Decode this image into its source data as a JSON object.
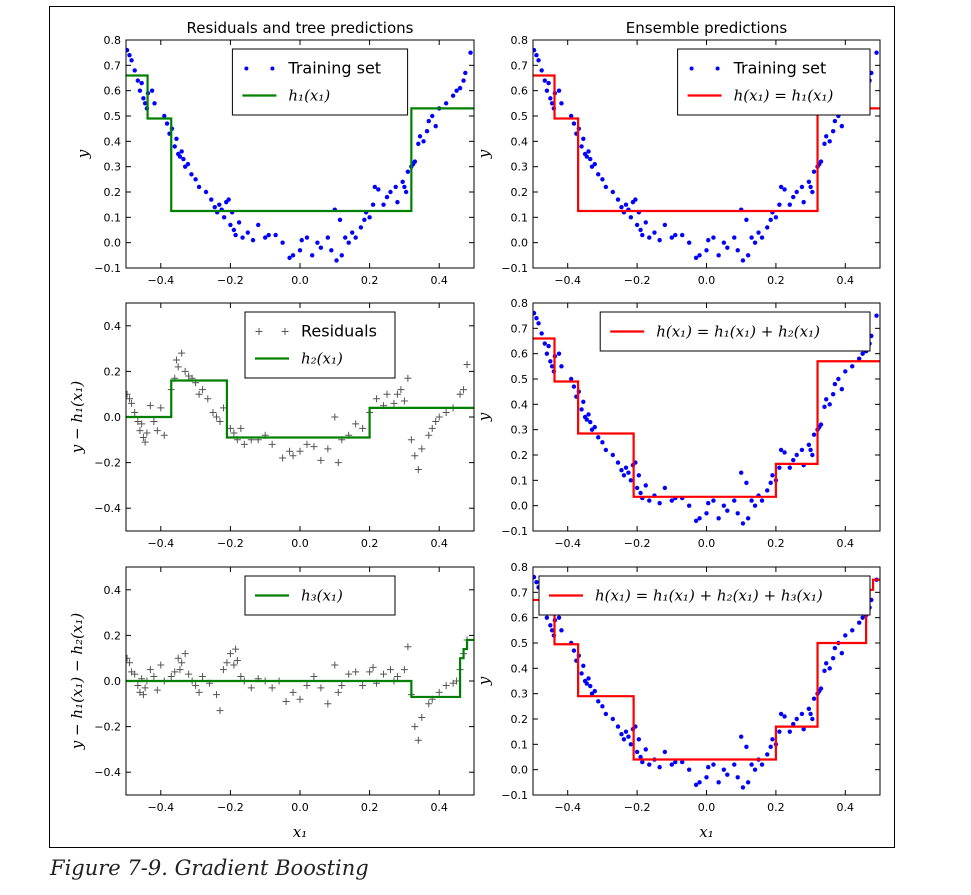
{
  "caption": "Figure 7-9. Gradient Boosting",
  "colors": {
    "points": "#0000ff",
    "residual_markers": "#555555",
    "tree_line": "#008000",
    "ensemble_line": "#ff0000"
  },
  "chart_data": [
    {
      "id": "p1",
      "type": "scatter",
      "title": "Residuals and tree predictions",
      "xlabel": "",
      "ylabel": "y",
      "xlim": [
        -0.5,
        0.5
      ],
      "ylim": [
        -0.1,
        0.8
      ],
      "xticks": [
        "−0.4",
        "−0.2",
        "0.0",
        "0.2",
        "0.4"
      ],
      "yticks": [
        "−0.1",
        "0.0",
        "0.1",
        "0.2",
        "0.3",
        "0.4",
        "0.5",
        "0.6",
        "0.7",
        "0.8"
      ],
      "legend": [
        "Training set",
        "h₁(x₁)"
      ],
      "legend_position": "top-center",
      "points": "training",
      "marker": "dot",
      "line": {
        "breaks": [
          -0.5,
          -0.438,
          -0.37,
          0.32,
          0.5
        ],
        "values": [
          0.66,
          0.49,
          0.125,
          0.53
        ],
        "color": "green"
      }
    },
    {
      "id": "p2",
      "type": "line",
      "title": "Ensemble predictions",
      "xlabel": "",
      "ylabel": "y",
      "xlim": [
        -0.5,
        0.5
      ],
      "ylim": [
        -0.1,
        0.8
      ],
      "xticks": [
        "−0.4",
        "−0.2",
        "0.0",
        "0.2",
        "0.4"
      ],
      "yticks": [
        "−0.1",
        "0.0",
        "0.1",
        "0.2",
        "0.3",
        "0.4",
        "0.5",
        "0.6",
        "0.7",
        "0.8"
      ],
      "legend": [
        "Training set",
        "h(x₁) = h₁(x₁)"
      ],
      "legend_position": "top-right",
      "points": "training",
      "marker": "dot",
      "line": {
        "breaks": [
          -0.5,
          -0.438,
          -0.37,
          0.32,
          0.5
        ],
        "values": [
          0.66,
          0.49,
          0.125,
          0.53
        ],
        "color": "red"
      }
    },
    {
      "id": "p3",
      "type": "scatter",
      "title": "",
      "xlabel": "",
      "ylabel": "y − h₁(x₁)",
      "xlim": [
        -0.5,
        0.5
      ],
      "ylim": [
        -0.5,
        0.5
      ],
      "xticks": [
        "−0.4",
        "−0.2",
        "0.0",
        "0.2",
        "0.4"
      ],
      "yticks": [
        "−0.4",
        "−0.2",
        "0.0",
        "0.2",
        "0.4"
      ],
      "legend": [
        "Residuals",
        "h₂(x₁)"
      ],
      "legend_position": "top-center",
      "points": "residual1",
      "marker": "plus",
      "line": {
        "breaks": [
          -0.5,
          -0.37,
          -0.21,
          0.2,
          0.5
        ],
        "values": [
          0.0,
          0.16,
          -0.09,
          0.04
        ],
        "color": "green"
      }
    },
    {
      "id": "p4",
      "type": "line",
      "title": "",
      "xlabel": "",
      "ylabel": "y",
      "xlim": [
        -0.5,
        0.5
      ],
      "ylim": [
        -0.1,
        0.8
      ],
      "xticks": [
        "−0.4",
        "−0.2",
        "0.0",
        "0.2",
        "0.4"
      ],
      "yticks": [
        "−0.1",
        "0.0",
        "0.1",
        "0.2",
        "0.3",
        "0.4",
        "0.5",
        "0.6",
        "0.7",
        "0.8"
      ],
      "legend": [
        "h(x₁) = h₁(x₁) + h₂(x₁)"
      ],
      "legend_position": "top-right",
      "points": "training",
      "marker": "dot",
      "line": {
        "breaks": [
          -0.5,
          -0.438,
          -0.37,
          -0.21,
          0.2,
          0.32,
          0.5
        ],
        "values": [
          0.66,
          0.49,
          0.285,
          0.035,
          0.165,
          0.57
        ],
        "color": "red"
      }
    },
    {
      "id": "p5",
      "type": "scatter",
      "title": "",
      "xlabel": "x₁",
      "ylabel": "y − h₁(x₁) − h₂(x₁)",
      "xlim": [
        -0.5,
        0.5
      ],
      "ylim": [
        -0.5,
        0.5
      ],
      "xticks": [
        "−0.4",
        "−0.2",
        "0.0",
        "0.2",
        "0.4"
      ],
      "yticks": [
        "−0.4",
        "−0.2",
        "0.0",
        "0.2",
        "0.4"
      ],
      "legend": [
        "h₃(x₁)"
      ],
      "legend_position": "top-center",
      "points": "residual2",
      "marker": "plus",
      "line": {
        "breaks": [
          -0.5,
          0.32,
          0.46,
          0.47,
          0.48,
          0.5
        ],
        "values": [
          0.0,
          -0.07,
          0.1,
          0.14,
          0.18
        ],
        "color": "green"
      }
    },
    {
      "id": "p6",
      "type": "line",
      "title": "",
      "xlabel": "x₁",
      "ylabel": "y",
      "xlim": [
        -0.5,
        0.5
      ],
      "ylim": [
        -0.1,
        0.8
      ],
      "xticks": [
        "−0.4",
        "−0.2",
        "0.0",
        "0.2",
        "0.4"
      ],
      "yticks": [
        "−0.1",
        "0.0",
        "0.1",
        "0.2",
        "0.3",
        "0.4",
        "0.5",
        "0.6",
        "0.7",
        "0.8"
      ],
      "legend": [
        "h(x₁) = h₁(x₁) + h₂(x₁) + h₃(x₁)"
      ],
      "legend_position": "top-right",
      "points": "training",
      "marker": "dot",
      "line": {
        "breaks": [
          -0.5,
          -0.438,
          -0.37,
          -0.21,
          0.2,
          0.32,
          0.46,
          0.47,
          0.48,
          0.5
        ],
        "values": [
          0.67,
          0.495,
          0.29,
          0.04,
          0.17,
          0.5,
          0.67,
          0.71,
          0.75
        ],
        "color": "red"
      }
    }
  ],
  "series": {
    "training": [
      [
        -0.497,
        0.76
      ],
      [
        -0.49,
        0.74
      ],
      [
        -0.484,
        0.72
      ],
      [
        -0.475,
        0.68
      ],
      [
        -0.466,
        0.64
      ],
      [
        -0.46,
        0.6
      ],
      [
        -0.455,
        0.63
      ],
      [
        -0.45,
        0.57
      ],
      [
        -0.445,
        0.55
      ],
      [
        -0.44,
        0.53
      ],
      [
        -0.437,
        0.59
      ],
      [
        -0.425,
        0.6
      ],
      [
        -0.418,
        0.55
      ],
      [
        -0.39,
        0.5
      ],
      [
        -0.382,
        0.47
      ],
      [
        -0.375,
        0.43
      ],
      [
        -0.368,
        0.45
      ],
      [
        -0.36,
        0.38
      ],
      [
        -0.355,
        0.41
      ],
      [
        -0.35,
        0.35
      ],
      [
        -0.345,
        0.34
      ],
      [
        -0.34,
        0.36
      ],
      [
        -0.335,
        0.33
      ],
      [
        -0.33,
        0.3
      ],
      [
        -0.322,
        0.31
      ],
      [
        -0.312,
        0.27
      ],
      [
        -0.3,
        0.25
      ],
      [
        -0.29,
        0.22
      ],
      [
        -0.27,
        0.2
      ],
      [
        -0.255,
        0.17
      ],
      [
        -0.245,
        0.14
      ],
      [
        -0.238,
        0.12
      ],
      [
        -0.232,
        0.15
      ],
      [
        -0.225,
        0.13
      ],
      [
        -0.218,
        0.1
      ],
      [
        -0.212,
        0.16
      ],
      [
        -0.205,
        0.17
      ],
      [
        -0.2,
        0.07
      ],
      [
        -0.195,
        0.12
      ],
      [
        -0.19,
        0.05
      ],
      [
        -0.185,
        0.03
      ],
      [
        -0.175,
        0.08
      ],
      [
        -0.165,
        0.02
      ],
      [
        -0.15,
        0.04
      ],
      [
        -0.135,
        0.01
      ],
      [
        -0.12,
        0.07
      ],
      [
        -0.1,
        0.02
      ],
      [
        -0.09,
        0.03
      ],
      [
        -0.07,
        0.03
      ],
      [
        -0.05,
        0.0
      ],
      [
        -0.03,
        -0.06
      ],
      [
        -0.02,
        -0.05
      ],
      [
        0.0,
        -0.03
      ],
      [
        0.005,
        0.01
      ],
      [
        0.02,
        0.02
      ],
      [
        0.035,
        -0.05
      ],
      [
        0.05,
        0.0
      ],
      [
        0.06,
        -0.02
      ],
      [
        0.08,
        0.02
      ],
      [
        0.09,
        -0.03
      ],
      [
        0.1,
        0.13
      ],
      [
        0.105,
        -0.07
      ],
      [
        0.115,
        0.09
      ],
      [
        0.12,
        -0.05
      ],
      [
        0.13,
        0.02
      ],
      [
        0.14,
        0.0
      ],
      [
        0.15,
        0.04
      ],
      [
        0.16,
        0.02
      ],
      [
        0.175,
        0.06
      ],
      [
        0.185,
        0.09
      ],
      [
        0.19,
        0.12
      ],
      [
        0.2,
        0.1
      ],
      [
        0.21,
        0.15
      ],
      [
        0.215,
        0.22
      ],
      [
        0.225,
        0.21
      ],
      [
        0.24,
        0.15
      ],
      [
        0.25,
        0.18
      ],
      [
        0.26,
        0.2
      ],
      [
        0.275,
        0.22
      ],
      [
        0.28,
        0.16
      ],
      [
        0.295,
        0.24
      ],
      [
        0.3,
        0.22
      ],
      [
        0.305,
        0.2
      ],
      [
        0.31,
        0.28
      ],
      [
        0.32,
        0.3
      ],
      [
        0.325,
        0.31
      ],
      [
        0.33,
        0.32
      ],
      [
        0.34,
        0.39
      ],
      [
        0.345,
        0.42
      ],
      [
        0.355,
        0.4
      ],
      [
        0.365,
        0.44
      ],
      [
        0.37,
        0.48
      ],
      [
        0.38,
        0.5
      ],
      [
        0.39,
        0.46
      ],
      [
        0.4,
        0.53
      ],
      [
        0.42,
        0.55
      ],
      [
        0.44,
        0.58
      ],
      [
        0.45,
        0.6
      ],
      [
        0.46,
        0.61
      ],
      [
        0.47,
        0.64
      ],
      [
        0.475,
        0.67
      ],
      [
        0.49,
        0.75
      ]
    ],
    "residual1": [
      [
        -0.497,
        0.1
      ],
      [
        -0.49,
        0.08
      ],
      [
        -0.484,
        0.06
      ],
      [
        -0.475,
        0.02
      ],
      [
        -0.466,
        -0.02
      ],
      [
        -0.46,
        -0.06
      ],
      [
        -0.455,
        -0.03
      ],
      [
        -0.45,
        -0.09
      ],
      [
        -0.445,
        -0.11
      ],
      [
        -0.44,
        -0.07
      ],
      [
        -0.43,
        0.05
      ],
      [
        -0.42,
        -0.02
      ],
      [
        -0.41,
        -0.06
      ],
      [
        -0.4,
        0.04
      ],
      [
        -0.39,
        -0.08
      ],
      [
        -0.37,
        0.12
      ],
      [
        -0.36,
        0.17
      ],
      [
        -0.355,
        0.25
      ],
      [
        -0.35,
        0.22
      ],
      [
        -0.34,
        0.28
      ],
      [
        -0.33,
        0.2
      ],
      [
        -0.32,
        0.18
      ],
      [
        -0.31,
        0.17
      ],
      [
        -0.3,
        0.15
      ],
      [
        -0.29,
        0.1
      ],
      [
        -0.28,
        0.12
      ],
      [
        -0.265,
        0.08
      ],
      [
        -0.25,
        0.02
      ],
      [
        -0.24,
        0.0
      ],
      [
        -0.23,
        -0.02
      ],
      [
        -0.22,
        0.04
      ],
      [
        -0.2,
        -0.05
      ],
      [
        -0.19,
        -0.07
      ],
      [
        -0.18,
        -0.1
      ],
      [
        -0.17,
        -0.05
      ],
      [
        -0.16,
        -0.12
      ],
      [
        -0.14,
        -0.1
      ],
      [
        -0.12,
        -0.1
      ],
      [
        -0.1,
        -0.08
      ],
      [
        -0.08,
        -0.12
      ],
      [
        -0.05,
        -0.18
      ],
      [
        -0.03,
        -0.15
      ],
      [
        -0.02,
        -0.17
      ],
      [
        0.0,
        -0.15
      ],
      [
        0.02,
        -0.12
      ],
      [
        0.04,
        -0.13
      ],
      [
        0.06,
        -0.19
      ],
      [
        0.08,
        -0.14
      ],
      [
        0.1,
        0.0
      ],
      [
        0.11,
        -0.2
      ],
      [
        0.12,
        -0.1
      ],
      [
        0.14,
        -0.08
      ],
      [
        0.16,
        -0.03
      ],
      [
        0.18,
        -0.05
      ],
      [
        0.2,
        0.02
      ],
      [
        0.22,
        0.08
      ],
      [
        0.24,
        0.05
      ],
      [
        0.25,
        0.1
      ],
      [
        0.27,
        0.06
      ],
      [
        0.28,
        0.1
      ],
      [
        0.29,
        0.12
      ],
      [
        0.3,
        0.07
      ],
      [
        0.31,
        0.17
      ],
      [
        0.32,
        -0.1
      ],
      [
        0.33,
        -0.17
      ],
      [
        0.34,
        -0.23
      ],
      [
        0.35,
        -0.14
      ],
      [
        0.37,
        -0.08
      ],
      [
        0.38,
        -0.05
      ],
      [
        0.39,
        -0.02
      ],
      [
        0.4,
        0.0
      ],
      [
        0.42,
        0.02
      ],
      [
        0.44,
        0.04
      ],
      [
        0.46,
        0.1
      ],
      [
        0.47,
        0.12
      ],
      [
        0.48,
        0.23
      ]
    ],
    "residual2": [
      [
        -0.497,
        0.1
      ],
      [
        -0.49,
        0.08
      ],
      [
        -0.484,
        0.04
      ],
      [
        -0.475,
        0.03
      ],
      [
        -0.466,
        -0.02
      ],
      [
        -0.46,
        -0.05
      ],
      [
        -0.455,
        0.01
      ],
      [
        -0.45,
        -0.06
      ],
      [
        -0.445,
        -0.03
      ],
      [
        -0.44,
        0.0
      ],
      [
        -0.43,
        0.05
      ],
      [
        -0.42,
        0.02
      ],
      [
        -0.41,
        -0.04
      ],
      [
        -0.4,
        0.07
      ],
      [
        -0.39,
        0.0
      ],
      [
        -0.37,
        0.02
      ],
      [
        -0.36,
        0.04
      ],
      [
        -0.35,
        0.1
      ],
      [
        -0.345,
        0.05
      ],
      [
        -0.34,
        0.08
      ],
      [
        -0.33,
        0.12
      ],
      [
        -0.32,
        0.03
      ],
      [
        -0.31,
        0.0
      ],
      [
        -0.3,
        -0.02
      ],
      [
        -0.29,
        -0.05
      ],
      [
        -0.28,
        0.02
      ],
      [
        -0.26,
        -0.01
      ],
      [
        -0.24,
        -0.06
      ],
      [
        -0.23,
        -0.13
      ],
      [
        -0.22,
        0.05
      ],
      [
        -0.21,
        0.08
      ],
      [
        -0.2,
        0.12
      ],
      [
        -0.19,
        0.07
      ],
      [
        -0.185,
        0.14
      ],
      [
        -0.18,
        0.09
      ],
      [
        -0.17,
        0.02
      ],
      [
        -0.16,
        0.0
      ],
      [
        -0.14,
        -0.03
      ],
      [
        -0.12,
        0.01
      ],
      [
        -0.1,
        0.0
      ],
      [
        -0.08,
        -0.03
      ],
      [
        -0.06,
        0.0
      ],
      [
        -0.04,
        -0.09
      ],
      [
        -0.02,
        -0.05
      ],
      [
        0.0,
        -0.08
      ],
      [
        0.02,
        -0.02
      ],
      [
        0.04,
        0.02
      ],
      [
        0.06,
        -0.03
      ],
      [
        0.08,
        -0.1
      ],
      [
        0.1,
        0.07
      ],
      [
        0.11,
        -0.05
      ],
      [
        0.12,
        -0.02
      ],
      [
        0.14,
        0.03
      ],
      [
        0.16,
        0.04
      ],
      [
        0.18,
        -0.02
      ],
      [
        0.2,
        0.04
      ],
      [
        0.21,
        0.06
      ],
      [
        0.22,
        -0.01
      ],
      [
        0.24,
        0.03
      ],
      [
        0.26,
        0.05
      ],
      [
        0.27,
        0.0
      ],
      [
        0.28,
        0.02
      ],
      [
        0.3,
        0.05
      ],
      [
        0.31,
        0.15
      ],
      [
        0.32,
        -0.06
      ],
      [
        0.33,
        -0.2
      ],
      [
        0.34,
        -0.26
      ],
      [
        0.35,
        -0.16
      ],
      [
        0.37,
        -0.1
      ],
      [
        0.38,
        -0.08
      ],
      [
        0.4,
        -0.05
      ],
      [
        0.42,
        -0.02
      ],
      [
        0.44,
        -0.01
      ],
      [
        0.45,
        0.0
      ],
      [
        0.46,
        0.05
      ],
      [
        0.47,
        0.12
      ],
      [
        0.48,
        0.18
      ]
    ]
  }
}
